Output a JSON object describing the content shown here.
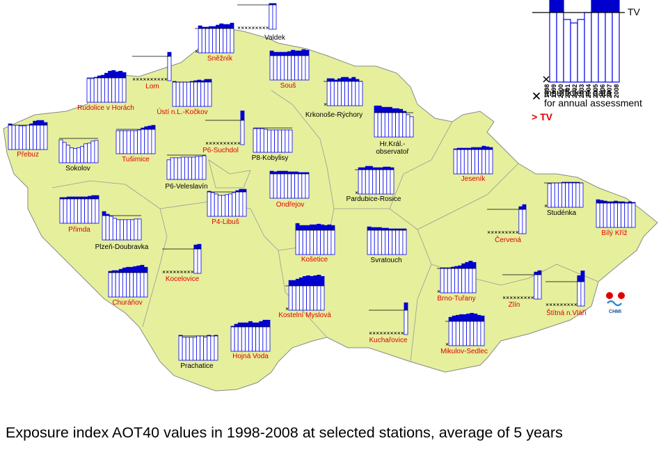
{
  "title": "Exposure index AOT40 values in 1998-2008 at selected stations, average of 5 years",
  "tv_value": 18000,
  "legend": {
    "tv": "TV",
    "years": [
      "1998",
      "1999",
      "2000",
      "2001",
      "2002",
      "2003",
      "2004",
      "2005",
      "2006",
      "2007",
      "2008"
    ],
    "insufficient": [
      "insufficient data",
      "for annual assessment"
    ],
    "exceed": "> TV"
  },
  "logo": "CHMI",
  "stations": [
    {
      "name": [
        "Valdek"
      ],
      "exceeds_tv": false,
      "values": [
        null,
        null,
        null,
        null,
        null,
        null,
        null,
        null,
        null,
        19000,
        19000
      ]
    },
    {
      "name": [
        "Sněžník"
      ],
      "exceeds_tv": true,
      "values": [
        null,
        20000,
        19000,
        19000,
        19500,
        19500,
        20500,
        21500,
        21000,
        21000,
        22000
      ]
    },
    {
      "name": [
        "Lom"
      ],
      "exceeds_tv": true,
      "values": [
        null,
        null,
        null,
        null,
        null,
        null,
        null,
        null,
        null,
        null,
        21000
      ]
    },
    {
      "name": [
        "Rudolice v Horách"
      ],
      "exceeds_tv": true,
      "values": [
        17500,
        17500,
        18500,
        19500,
        20000,
        21500,
        23000,
        23500,
        22500,
        23000,
        22000
      ]
    },
    {
      "name": [
        "Ústí n.L.-Kočkov"
      ],
      "exceeds_tv": true,
      "values": [
        18500,
        18000,
        18000,
        18000,
        18000,
        18500,
        19000,
        19500,
        19000,
        20000,
        20000
      ]
    },
    {
      "name": [
        "Souš"
      ],
      "exceeds_tv": true,
      "values": [
        21500,
        20500,
        20500,
        20500,
        20500,
        21000,
        22000,
        21500,
        21500,
        22500,
        22000
      ]
    },
    {
      "name": [
        "Krkonoše-Rýchory"
      ],
      "exceeds_tv": false,
      "values": [
        null,
        20000,
        20000,
        19000,
        20000,
        21000,
        21000,
        20000,
        21000,
        19500,
        18000
      ]
    },
    {
      "name": [
        "Hr.Král.-",
        "observatoř"
      ],
      "exceeds_tv": false,
      "values": [
        23000,
        23000,
        22000,
        22000,
        22000,
        21000,
        21000,
        20500,
        19000,
        16500,
        15000
      ]
    },
    {
      "name": [
        "Přebuz"
      ],
      "exceeds_tv": true,
      "values": [
        19000,
        18000,
        18000,
        17500,
        17500,
        18000,
        19000,
        21000,
        21500,
        21500,
        20000
      ]
    },
    {
      "name": [
        "Sokolov"
      ],
      "exceeds_tv": false,
      "values": [
        17000,
        15000,
        13000,
        11000,
        10500,
        11000,
        12000,
        14000,
        14500,
        16000,
        16500
      ]
    },
    {
      "name": [
        "Tušimice"
      ],
      "exceeds_tv": true,
      "values": [
        17000,
        17000,
        17000,
        17000,
        17000,
        17000,
        17500,
        19000,
        20000,
        20500,
        21000
      ]
    },
    {
      "name": [
        "P6-Suchdol"
      ],
      "exceeds_tv": true,
      "values": [
        null,
        null,
        null,
        null,
        null,
        null,
        null,
        null,
        null,
        null,
        25000
      ]
    },
    {
      "name": [
        "P8-Kobylisy"
      ],
      "exceeds_tv": false,
      "values": [
        17500,
        17500,
        17500,
        17000,
        16500,
        16500,
        16500,
        16500,
        16500,
        16500,
        16500
      ]
    },
    {
      "name": [
        "P6-Veleslavín"
      ],
      "exceeds_tv": false,
      "values": [
        14500,
        16000,
        16000,
        16000,
        16500,
        16500,
        16500,
        16500,
        17000,
        17000,
        17500
      ]
    },
    {
      "name": [
        "P4-Libuš"
      ],
      "exceeds_tv": true,
      "values": [
        18500,
        17500,
        16500,
        15500,
        15500,
        16000,
        16500,
        17500,
        19000,
        20000,
        20000
      ]
    },
    {
      "name": [
        "Ondřejov"
      ],
      "exceeds_tv": true,
      "values": [
        20000,
        19500,
        20000,
        20000,
        20000,
        19500,
        19500,
        19500,
        19000,
        19000,
        19000
      ]
    },
    {
      "name": [
        "Pardubice-Rosice"
      ],
      "exceeds_tv": false,
      "values": [
        null,
        19500,
        19500,
        20500,
        20500,
        19500,
        19500,
        19500,
        20000,
        20000,
        19500
      ]
    },
    {
      "name": [
        "Jeseník"
      ],
      "exceeds_tv": true,
      "values": [
        18500,
        19000,
        19000,
        19000,
        19000,
        19500,
        19500,
        19500,
        20500,
        20000,
        19500
      ]
    },
    {
      "name": [
        "Přimda"
      ],
      "exceeds_tv": true,
      "values": [
        19000,
        19000,
        19500,
        19500,
        19500,
        19500,
        19500,
        19500,
        20000,
        20500,
        20500
      ]
    },
    {
      "name": [
        "Plzeň-Doubravka"
      ],
      "exceeds_tv": false,
      "values": [
        21000,
        19000,
        17500,
        16000,
        15000,
        15000,
        15000,
        15000,
        15000,
        15500,
        15500
      ]
    },
    {
      "name": [
        "Kocelovice"
      ],
      "exceeds_tv": true,
      "values": [
        null,
        null,
        null,
        null,
        null,
        null,
        null,
        null,
        null,
        21000,
        21500
      ]
    },
    {
      "name": [
        "Churáňov"
      ],
      "exceeds_tv": true,
      "values": [
        19000,
        19500,
        19500,
        20500,
        21500,
        22000,
        22000,
        22500,
        23000,
        23500,
        22000
      ]
    },
    {
      "name": [
        "Košetice"
      ],
      "exceeds_tv": true,
      "values": [
        23000,
        21500,
        21500,
        21500,
        22000,
        22000,
        22500,
        22000,
        21500,
        22000,
        21500
      ]
    },
    {
      "name": [
        "Svratouch"
      ],
      "exceeds_tv": false,
      "values": [
        20500,
        20000,
        20000,
        20000,
        19500,
        19500,
        19000,
        19000,
        19000,
        19000,
        19000
      ]
    },
    {
      "name": [
        "Kostelní Myslová"
      ],
      "exceeds_tv": true,
      "values": [
        null,
        22000,
        22000,
        23000,
        24000,
        25000,
        25500,
        25000,
        25500,
        26000,
        25000
      ]
    },
    {
      "name": [
        "Hojná Voda"
      ],
      "exceeds_tv": true,
      "values": [
        18500,
        20000,
        21000,
        21000,
        21000,
        22000,
        21000,
        21000,
        22000,
        23000,
        23000
      ]
    },
    {
      "name": [
        "Prachatice"
      ],
      "exceeds_tv": false,
      "values": [
        18500,
        17000,
        17000,
        17000,
        17000,
        18000,
        18000,
        17000,
        18500,
        18000,
        18500
      ]
    },
    {
      "name": [
        "Kuchařovice"
      ],
      "exceeds_tv": true,
      "values": [
        null,
        null,
        null,
        null,
        null,
        null,
        null,
        null,
        null,
        null,
        23500
      ]
    },
    {
      "name": [
        "Mikulov-Sedlec"
      ],
      "exceeds_tv": true,
      "values": [
        null,
        21000,
        22000,
        22500,
        23000,
        23000,
        23500,
        24000,
        23500,
        22500,
        22000
      ]
    },
    {
      "name": [
        "Brno-Tuřany"
      ],
      "exceeds_tv": true,
      "values": [
        null,
        18500,
        18500,
        18500,
        19000,
        19500,
        20000,
        21500,
        22500,
        23500,
        22500
      ]
    },
    {
      "name": [
        "Červená"
      ],
      "exceeds_tv": true,
      "values": [
        null,
        null,
        null,
        null,
        null,
        null,
        null,
        null,
        null,
        20000,
        21500
      ]
    },
    {
      "name": [
        "Studénka"
      ],
      "exceeds_tv": false,
      "values": [
        null,
        17500,
        18000,
        18000,
        18000,
        18500,
        18500,
        18500,
        18500,
        18500,
        18000
      ]
    },
    {
      "name": [
        "Bílý Kříž"
      ],
      "exceeds_tv": true,
      "values": [
        20500,
        20000,
        19500,
        19000,
        19000,
        19500,
        19000,
        19000,
        18500,
        19000,
        18500
      ]
    },
    {
      "name": [
        "Zlín"
      ],
      "exceeds_tv": true,
      "values": [
        null,
        null,
        null,
        null,
        null,
        null,
        null,
        null,
        null,
        20000,
        21000
      ]
    },
    {
      "name": [
        "Štítná n.Vláří"
      ],
      "exceeds_tv": true,
      "values": [
        null,
        null,
        null,
        null,
        null,
        null,
        null,
        null,
        null,
        22500,
        26000
      ]
    }
  ]
}
